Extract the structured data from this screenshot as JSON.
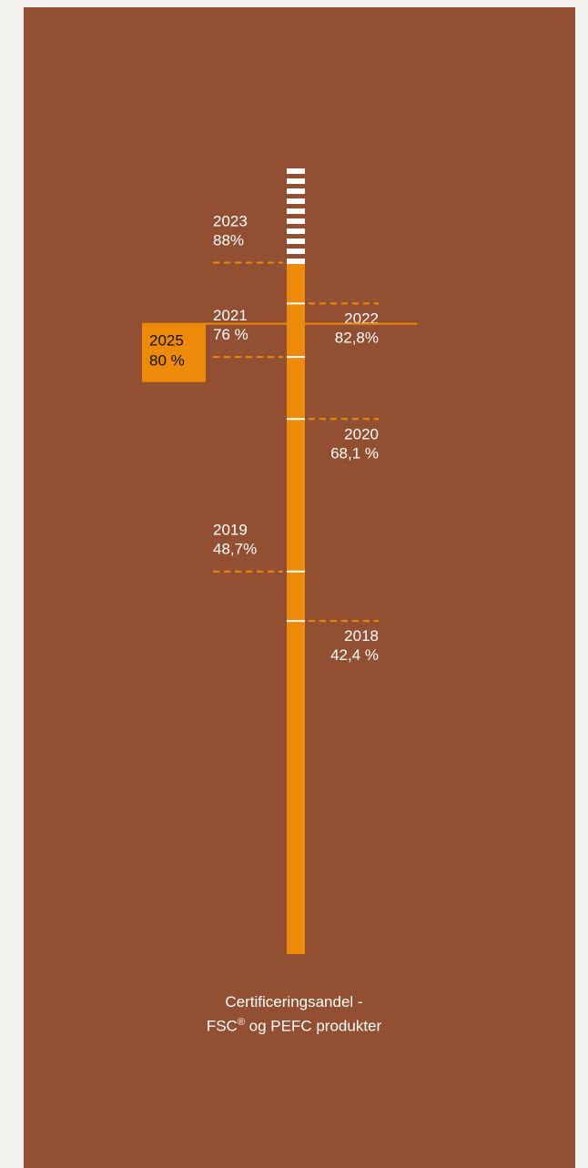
{
  "chart_data": {
    "type": "bar",
    "title": "",
    "xlabel": "",
    "ylabel": "",
    "ylim": [
      0,
      100
    ],
    "categories": [
      "2018",
      "2019",
      "2020",
      "2021",
      "2022",
      "2023"
    ],
    "values": [
      42.4,
      48.7,
      68.1,
      76,
      82.8,
      88
    ],
    "value_labels": [
      "42,4 %",
      "48,7%",
      "68,1 %",
      "76 %",
      "82,8%",
      "88%"
    ],
    "label_side": [
      "right",
      "left",
      "right",
      "left",
      "right",
      "left"
    ],
    "target": {
      "year": "2025",
      "value": 80,
      "label": "80 %"
    },
    "caption": {
      "line1": "Certificeringsandel -",
      "line2_prefix": "FSC",
      "line2_mark": "®",
      "line2_suffix": " og PEFC produkter"
    },
    "colors": {
      "background": "#924f31",
      "page": "#f2f0ed",
      "bar": "#ee8a09",
      "marker": "#ffffff",
      "dash": "#ee8a09",
      "target_box": "#ee8a09",
      "target_text": "#111111",
      "label_text": "#ffffff"
    }
  }
}
